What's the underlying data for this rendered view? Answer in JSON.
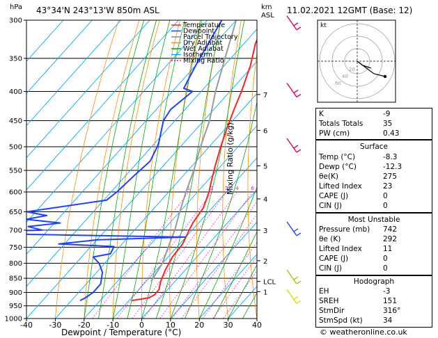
{
  "header": {
    "location": "43°34'N  243°13'W  850m  ASL",
    "datetime": "11.02.2021  12GMT  (Base: 12)",
    "hpa_label": "hPa",
    "km_label": "km\nASL"
  },
  "chart_data": {
    "type": "skew-t",
    "xlabel": "Dewpoint / Temperature (°C)",
    "ylabel": "Mixing Ratio (g/kg)",
    "x_ticks": [
      -40,
      -30,
      -20,
      -10,
      0,
      10,
      20,
      30,
      40
    ],
    "xlim": [
      -40,
      40
    ],
    "p_ticks": [
      300,
      350,
      400,
      450,
      500,
      550,
      600,
      650,
      700,
      750,
      800,
      850,
      900,
      950,
      1000
    ],
    "ylim": [
      1000,
      300
    ],
    "km_ticks": [
      {
        "label": "7",
        "p": 405
      },
      {
        "label": "6",
        "p": 468
      },
      {
        "label": "5",
        "p": 540
      },
      {
        "label": "4",
        "p": 617
      },
      {
        "label": "3",
        "p": 700
      },
      {
        "label": "2",
        "p": 792
      },
      {
        "label": "LCL",
        "p": 861
      },
      {
        "label": "1",
        "p": 897
      }
    ],
    "mixing_ratio_labels": [
      "1",
      "2",
      "3",
      "4",
      "6",
      "8",
      "10",
      "16",
      "20",
      "25"
    ],
    "mixing_ratio_values": [
      1,
      2,
      3,
      4,
      6,
      8,
      10,
      16,
      20,
      25
    ],
    "legend": [
      "Temperature",
      "Dewpoint",
      "Parcel Trajectory",
      "Dry Adiabat",
      "Wet Adiabat",
      "Isotherm",
      "Mixing Ratio"
    ],
    "legend_colors": [
      "#ff2020",
      "#2040ff",
      "#888888",
      "#ff8c00",
      "#00aa00",
      "#00aaff",
      "#ff00cc"
    ],
    "temperature": [
      [
        300,
        -50
      ],
      [
        330,
        -46
      ],
      [
        360,
        -41
      ],
      [
        400,
        -36
      ],
      [
        430,
        -33
      ],
      [
        470,
        -29
      ],
      [
        500,
        -26
      ],
      [
        540,
        -22
      ],
      [
        580,
        -18
      ],
      [
        600,
        -16
      ],
      [
        640,
        -13
      ],
      [
        680,
        -12
      ],
      [
        700,
        -11
      ],
      [
        740,
        -9
      ],
      [
        780,
        -8.5
      ],
      [
        820,
        -7
      ],
      [
        860,
        -5
      ],
      [
        890,
        -3
      ],
      [
        910,
        -3
      ],
      [
        920,
        -4
      ],
      [
        930,
        -9
      ]
    ],
    "dewpoint": [
      [
        300,
        -65
      ],
      [
        360,
        -60
      ],
      [
        395,
        -57
      ],
      [
        400,
        -53
      ],
      [
        430,
        -55
      ],
      [
        450,
        -54
      ],
      [
        490,
        -49
      ],
      [
        500,
        -48
      ],
      [
        530,
        -46
      ],
      [
        560,
        -47
      ],
      [
        600,
        -48
      ],
      [
        620,
        -49
      ],
      [
        650,
        -73
      ],
      [
        660,
        -65
      ],
      [
        670,
        -71
      ],
      [
        680,
        -58
      ],
      [
        690,
        -68
      ],
      [
        700,
        -62
      ],
      [
        705,
        -84
      ],
      [
        712,
        -65
      ],
      [
        720,
        -10
      ],
      [
        728,
        -40
      ],
      [
        740,
        -52
      ],
      [
        748,
        -32
      ],
      [
        770,
        -31
      ],
      [
        780,
        -36
      ],
      [
        800,
        -32
      ],
      [
        830,
        -28
      ],
      [
        870,
        -25
      ],
      [
        900,
        -25
      ],
      [
        920,
        -26
      ],
      [
        930,
        -27
      ]
    ],
    "parcel": [
      [
        300,
        -60
      ],
      [
        350,
        -52
      ],
      [
        400,
        -45
      ],
      [
        450,
        -38
      ],
      [
        500,
        -33
      ],
      [
        550,
        -28
      ],
      [
        600,
        -24
      ],
      [
        650,
        -20
      ],
      [
        700,
        -16
      ],
      [
        750,
        -13
      ],
      [
        800,
        -10
      ],
      [
        861,
        -8.3
      ]
    ]
  },
  "indices": {
    "rows": [
      {
        "k": "K",
        "v": "-9"
      },
      {
        "k": "Totals Totals",
        "v": "35"
      },
      {
        "k": "PW (cm)",
        "v": "0.43"
      }
    ]
  },
  "surface": {
    "title": "Surface",
    "rows": [
      {
        "k": "Temp (°C)",
        "v": "-8.3"
      },
      {
        "k": "Dewp (°C)",
        "v": "-12.3"
      },
      {
        "k": "θe(K)",
        "v": "275"
      },
      {
        "k": "Lifted Index",
        "v": "23"
      },
      {
        "k": "CAPE (J)",
        "v": "0"
      },
      {
        "k": "CIN (J)",
        "v": "0"
      }
    ]
  },
  "most_unstable": {
    "title": "Most Unstable",
    "rows": [
      {
        "k": "Pressure (mb)",
        "v": "742"
      },
      {
        "k": "θe (K)",
        "v": "292"
      },
      {
        "k": "Lifted Index",
        "v": "11"
      },
      {
        "k": "CAPE (J)",
        "v": "0"
      },
      {
        "k": "CIN (J)",
        "v": "0"
      }
    ]
  },
  "hodograph_table": {
    "title": "Hodograph",
    "rows": [
      {
        "k": "EH",
        "v": "-3"
      },
      {
        "k": "SREH",
        "v": "151"
      },
      {
        "k": "StmDir",
        "v": "316°"
      },
      {
        "k": "StmSpd (kt)",
        "v": "34"
      }
    ]
  },
  "hodograph": {
    "label": "kt",
    "ring_labels": [
      "20",
      "40",
      "60"
    ]
  },
  "footer": "© weatheronline.co.uk",
  "colors": {
    "temperature": "#ff2020",
    "dewpoint": "#2040ff",
    "dry": "#ff8c00",
    "wet": "#00aa00",
    "isotherm": "#00aaff",
    "mixing": "#ff00cc",
    "parcel": "#999999",
    "wind_upper": "#dd0066",
    "wind_mid": "#2040ff",
    "wind_low": "#99cc00",
    "wind_sfc": "#dddd00"
  }
}
